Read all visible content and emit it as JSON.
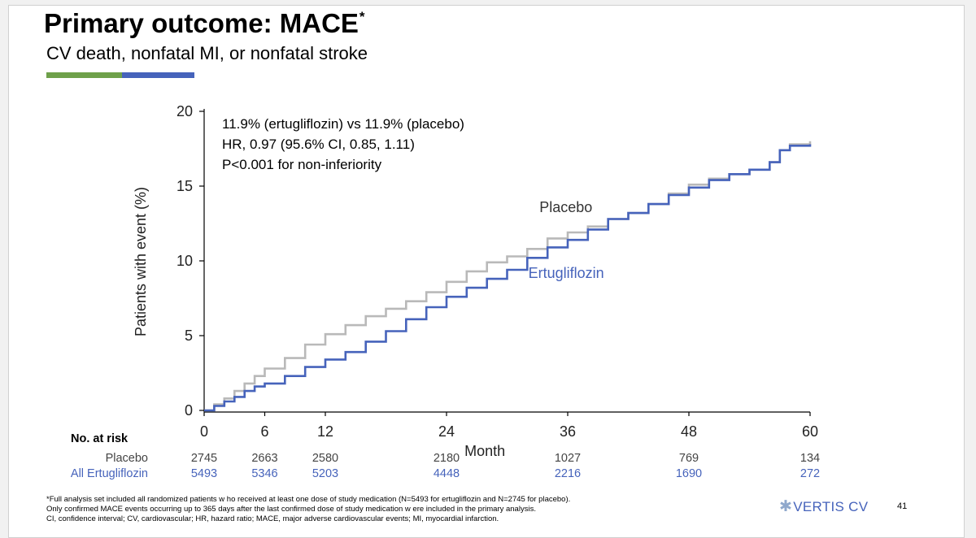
{
  "title": "Primary outcome: MACE",
  "title_sup": "*",
  "subtitle": "CV death, nonfatal MI, or nonfatal stroke",
  "colors": {
    "green": "#6ea04a",
    "blue": "#4663bb",
    "placebo_line": "#b9b9b9",
    "ertugliflozin_line": "#4663bb",
    "axis": "#000000"
  },
  "chart_data": {
    "type": "line",
    "title": "",
    "xlabel": "Month",
    "ylabel": "Patients with event (%)",
    "xlim": [
      0,
      60
    ],
    "ylim": [
      0,
      20
    ],
    "xticks": [
      0,
      6,
      12,
      24,
      36,
      48,
      60
    ],
    "yticks": [
      0,
      5,
      10,
      15,
      20
    ],
    "stats": [
      "11.9% (ertugliflozin) vs 11.9% (placebo)",
      "HR, 0.97 (95.6% CI, 0.85, 1.11)",
      "P<0.001 for non-inferiority"
    ],
    "series": [
      {
        "name": "Placebo",
        "x": [
          0,
          1,
          2,
          3,
          4,
          5,
          6,
          8,
          10,
          12,
          14,
          16,
          18,
          20,
          22,
          24,
          26,
          28,
          30,
          32,
          34,
          36,
          38,
          40,
          42,
          44,
          46,
          48,
          50,
          52,
          54,
          56,
          57,
          58,
          60
        ],
        "y": [
          0,
          0.4,
          0.8,
          1.3,
          1.8,
          2.3,
          2.8,
          3.5,
          4.4,
          5.1,
          5.7,
          6.3,
          6.8,
          7.3,
          7.9,
          8.6,
          9.3,
          9.9,
          10.3,
          10.8,
          11.5,
          11.9,
          12.3,
          12.8,
          13.2,
          13.8,
          14.5,
          15.1,
          15.5,
          15.8,
          16.1,
          16.6,
          17.4,
          17.8,
          18.0
        ]
      },
      {
        "name": "Ertugliflozin",
        "x": [
          0,
          1,
          2,
          3,
          4,
          5,
          6,
          8,
          10,
          12,
          14,
          16,
          18,
          20,
          22,
          24,
          26,
          28,
          30,
          32,
          34,
          36,
          38,
          40,
          42,
          44,
          46,
          48,
          50,
          52,
          54,
          56,
          57,
          58,
          60
        ],
        "y": [
          0,
          0.3,
          0.6,
          0.9,
          1.3,
          1.6,
          1.8,
          2.3,
          2.9,
          3.4,
          3.9,
          4.6,
          5.3,
          6.1,
          6.9,
          7.6,
          8.2,
          8.8,
          9.4,
          10.2,
          10.9,
          11.4,
          12.1,
          12.8,
          13.2,
          13.8,
          14.4,
          14.9,
          15.4,
          15.8,
          16.1,
          16.6,
          17.4,
          17.7,
          17.8
        ]
      }
    ],
    "series_labels": [
      {
        "name": "Placebo"
      },
      {
        "name": "Ertugliflozin"
      }
    ]
  },
  "risk_table": {
    "header": "No. at risk",
    "rows": [
      {
        "label": "Placebo",
        "values": [
          "2745",
          "2663",
          "2580",
          "2180",
          "1027",
          "769",
          "134"
        ]
      },
      {
        "label": "All Ertugliflozin",
        "values": [
          "5493",
          "5346",
          "5203",
          "4448",
          "2216",
          "1690",
          "272"
        ]
      }
    ]
  },
  "footnotes": [
    "*Full analysis set included all randomized patients w ho received at least one dose of study medication (N=5493 for ertugliflozin and N=2745 for placebo).",
    "Only confirmed MACE events occurring up to 365 days after the last confirmed dose of study medication w ere included in the primary analysis.",
    "CI, confidence interval; CV, cardiovascular; HR, hazard ratio; MACE, major adverse cardiovascular events; MI, myocardial infarction."
  ],
  "logo_text": "VERTIS CV",
  "logo_icon": "asterisk-logo-icon",
  "page_number": "41"
}
